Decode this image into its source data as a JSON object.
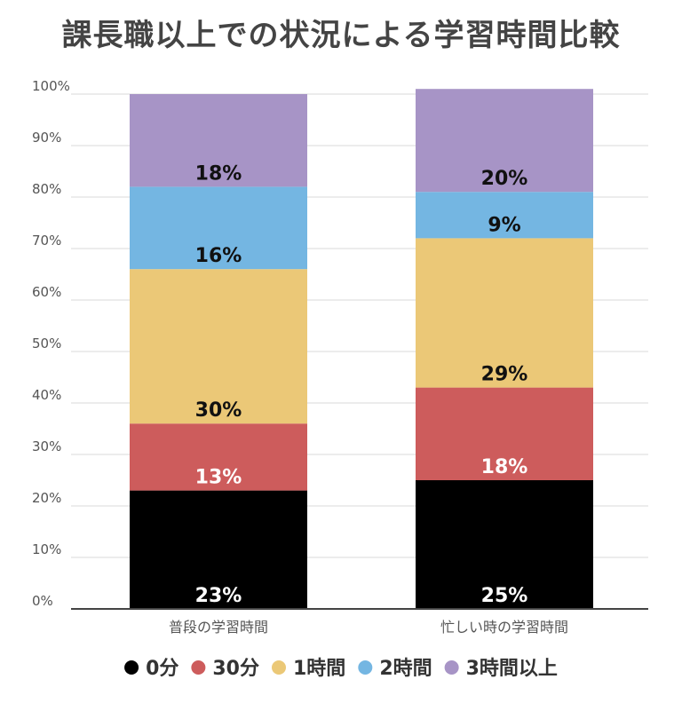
{
  "chart_data": {
    "type": "bar",
    "stacked": true,
    "title": "課長職以上での状況による学習時間比較",
    "categories": [
      "普段の学習時間",
      "忙しい時の学習時間"
    ],
    "ylim": [
      0,
      100
    ],
    "y_ticks": [
      "0%",
      "10%",
      "20%",
      "30%",
      "40%",
      "50%",
      "60%",
      "70%",
      "80%",
      "90%",
      "100%"
    ],
    "grid": true,
    "legend_position": "bottom",
    "series": [
      {
        "name": "0分",
        "color": "#000000",
        "label_color": "#ffffff",
        "values": [
          23,
          25
        ],
        "labels": [
          "23%",
          "25%"
        ]
      },
      {
        "name": "30分",
        "color": "#cd5c5c",
        "label_color": "#ffffff",
        "values": [
          13,
          18
        ],
        "labels": [
          "13%",
          "18%"
        ]
      },
      {
        "name": "1時間",
        "color": "#ebc877",
        "label_color": "#111111",
        "values": [
          30,
          29
        ],
        "labels": [
          "30%",
          "29%"
        ]
      },
      {
        "name": "2時間",
        "color": "#74b6e2",
        "label_color": "#111111",
        "values": [
          16,
          9
        ],
        "labels": [
          "16%",
          "9%"
        ]
      },
      {
        "name": "3時間以上",
        "color": "#a794c6",
        "label_color": "#111111",
        "values": [
          18,
          20
        ],
        "labels": [
          "18%",
          "20%"
        ]
      }
    ]
  }
}
